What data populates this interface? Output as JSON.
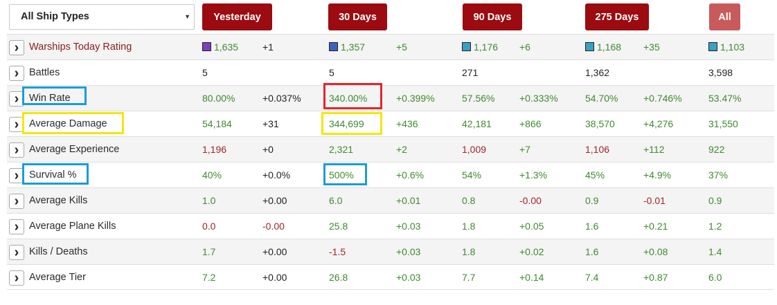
{
  "filter": {
    "selected": "All Ship Types",
    "caret": "▼"
  },
  "periods": [
    "Yesterday",
    "30 Days",
    "90 Days",
    "275 Days",
    "All"
  ],
  "colors": {
    "button": "#9b0b10",
    "button_faded": "#c85a5c",
    "green": "#3e8a2e",
    "red": "#a0252a",
    "highlight_blue": "#1a9cd8",
    "highlight_yellow": "#f2e70d",
    "highlight_red": "#e2262b"
  },
  "rows": [
    {
      "label": "Warships Today Rating",
      "cells": [
        {
          "v": "1,635",
          "c": "green",
          "sq": "#7f3fbf"
        },
        {
          "v": "+1",
          "c": "dark"
        },
        {
          "v": "1,357",
          "c": "green",
          "sq": "#3a62c4"
        },
        {
          "v": "+5",
          "c": "green"
        },
        {
          "v": "1,176",
          "c": "green",
          "sq": "#3aa0c4"
        },
        {
          "v": "+6",
          "c": "green"
        },
        {
          "v": "1,168",
          "c": "green",
          "sq": "#3aa0c4"
        },
        {
          "v": "+35",
          "c": "green"
        },
        {
          "v": "1,103",
          "c": "green",
          "sq": "#3aa0c4"
        }
      ]
    },
    {
      "label": "Battles",
      "cells": [
        {
          "v": "5",
          "c": "dark"
        },
        {
          "v": "",
          "c": "dark"
        },
        {
          "v": "5",
          "c": "dark"
        },
        {
          "v": "",
          "c": "dark"
        },
        {
          "v": "271",
          "c": "dark"
        },
        {
          "v": "",
          "c": "dark"
        },
        {
          "v": "1,362",
          "c": "dark"
        },
        {
          "v": "",
          "c": "dark"
        },
        {
          "v": "3,598",
          "c": "dark"
        }
      ]
    },
    {
      "label": "Win Rate",
      "cells": [
        {
          "v": "80.00%",
          "c": "green"
        },
        {
          "v": "+0.037%",
          "c": "dark"
        },
        {
          "v": "340.00%",
          "c": "green"
        },
        {
          "v": "+0.399%",
          "c": "green"
        },
        {
          "v": "57.56%",
          "c": "green"
        },
        {
          "v": "+0.333%",
          "c": "green"
        },
        {
          "v": "54.70%",
          "c": "green"
        },
        {
          "v": "+0.746%",
          "c": "green"
        },
        {
          "v": "53.47%",
          "c": "green"
        }
      ]
    },
    {
      "label": "Average Damage",
      "cells": [
        {
          "v": "54,184",
          "c": "green"
        },
        {
          "v": "+31",
          "c": "dark"
        },
        {
          "v": "344,699",
          "c": "green"
        },
        {
          "v": "+436",
          "c": "green"
        },
        {
          "v": "42,181",
          "c": "green"
        },
        {
          "v": "+866",
          "c": "green"
        },
        {
          "v": "38,570",
          "c": "green"
        },
        {
          "v": "+4,276",
          "c": "green"
        },
        {
          "v": "31,550",
          "c": "green"
        }
      ]
    },
    {
      "label": "Average Experience",
      "cells": [
        {
          "v": "1,196",
          "c": "red"
        },
        {
          "v": "+0",
          "c": "dark"
        },
        {
          "v": "2,321",
          "c": "green"
        },
        {
          "v": "+2",
          "c": "green"
        },
        {
          "v": "1,009",
          "c": "red"
        },
        {
          "v": "+7",
          "c": "green"
        },
        {
          "v": "1,106",
          "c": "red"
        },
        {
          "v": "+112",
          "c": "green"
        },
        {
          "v": "922",
          "c": "green"
        }
      ]
    },
    {
      "label": "Survival %",
      "cells": [
        {
          "v": "40%",
          "c": "green"
        },
        {
          "v": "+0.0%",
          "c": "dark"
        },
        {
          "v": "500%",
          "c": "green"
        },
        {
          "v": "+0.6%",
          "c": "green"
        },
        {
          "v": "54%",
          "c": "green"
        },
        {
          "v": "+1.3%",
          "c": "green"
        },
        {
          "v": "45%",
          "c": "green"
        },
        {
          "v": "+4.9%",
          "c": "green"
        },
        {
          "v": "37%",
          "c": "green"
        }
      ]
    },
    {
      "label": "Average Kills",
      "cells": [
        {
          "v": "1.0",
          "c": "green"
        },
        {
          "v": "+0.00",
          "c": "dark"
        },
        {
          "v": "6.0",
          "c": "green"
        },
        {
          "v": "+0.01",
          "c": "green"
        },
        {
          "v": "0.8",
          "c": "green"
        },
        {
          "v": "-0.00",
          "c": "red"
        },
        {
          "v": "0.9",
          "c": "green"
        },
        {
          "v": "-0.01",
          "c": "red"
        },
        {
          "v": "0.9",
          "c": "green"
        }
      ]
    },
    {
      "label": "Average Plane Kills",
      "cells": [
        {
          "v": "0.0",
          "c": "red"
        },
        {
          "v": "-0.00",
          "c": "red"
        },
        {
          "v": "25.8",
          "c": "green"
        },
        {
          "v": "+0.03",
          "c": "green"
        },
        {
          "v": "1.8",
          "c": "green"
        },
        {
          "v": "+0.05",
          "c": "green"
        },
        {
          "v": "1.6",
          "c": "green"
        },
        {
          "v": "+0.21",
          "c": "green"
        },
        {
          "v": "1.2",
          "c": "green"
        }
      ]
    },
    {
      "label": "Kills / Deaths",
      "cells": [
        {
          "v": "1.7",
          "c": "green"
        },
        {
          "v": "+0.00",
          "c": "dark"
        },
        {
          "v": "-1.5",
          "c": "red"
        },
        {
          "v": "+0.03",
          "c": "green"
        },
        {
          "v": "1.8",
          "c": "green"
        },
        {
          "v": "+0.02",
          "c": "green"
        },
        {
          "v": "1.6",
          "c": "green"
        },
        {
          "v": "+0.08",
          "c": "green"
        },
        {
          "v": "1.4",
          "c": "green"
        }
      ]
    },
    {
      "label": "Average Tier",
      "cells": [
        {
          "v": "7.2",
          "c": "green"
        },
        {
          "v": "+0.00",
          "c": "dark"
        },
        {
          "v": "26.8",
          "c": "green"
        },
        {
          "v": "+0.03",
          "c": "green"
        },
        {
          "v": "7.7",
          "c": "green"
        },
        {
          "v": "+0.14",
          "c": "green"
        },
        {
          "v": "7.4",
          "c": "green"
        },
        {
          "v": "+0.87",
          "c": "green"
        },
        {
          "v": "6.0",
          "c": "green"
        }
      ]
    }
  ]
}
